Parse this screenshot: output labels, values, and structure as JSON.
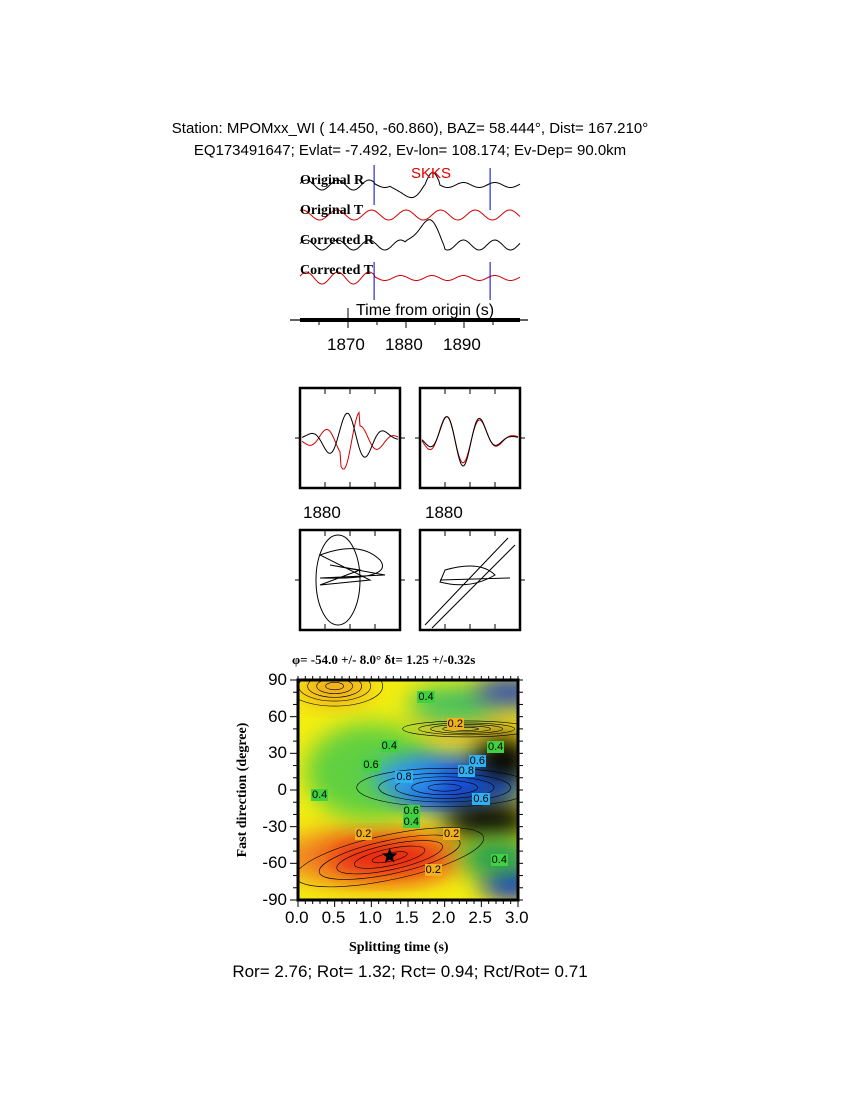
{
  "header": {
    "line1": "Station: MPOMxx_WI (  14.450,  -60.860), BAZ=   58.444°, Dist=  167.210°",
    "line2": "EQ173491647; Evlat=  -7.492, Ev-lon= 108.174; Ev-Dep= 90.0km"
  },
  "chart_data": [
    {
      "type": "line",
      "phase_label": "SKKS",
      "traces": [
        "Original R",
        "Original T",
        "Corrected R",
        "Corrected T"
      ],
      "xlabel": "Time from origin (s)",
      "x_ticks": [
        "1870",
        "1880",
        "1890"
      ],
      "window_markers_s": [
        1874.5,
        1894.5
      ],
      "colors": {
        "radial": "#000000",
        "transverse": "#d00000",
        "window": "#0000cc"
      }
    },
    {
      "type": "line",
      "panels": [
        "waveform comparison (original)",
        "waveform comparison (corrected)"
      ],
      "x_ticks": [
        "1880",
        "1880"
      ]
    },
    {
      "type": "scatter",
      "panels": [
        "particle motion (original)",
        "particle motion (corrected)"
      ]
    },
    {
      "type": "heatmap",
      "title": "φ= -54.0 +/- 8.0° δt= 1.25 +/-0.32s",
      "xlabel": "Splitting time (s)",
      "ylabel": "Fast direction (degree)",
      "xlim": [
        0,
        3
      ],
      "ylim": [
        -90,
        90
      ],
      "x_ticks": [
        "0.0",
        "0.5",
        "1.0",
        "1.5",
        "2.0",
        "2.5",
        "3.0"
      ],
      "y_ticks": [
        "90",
        "60",
        "30",
        "0",
        "-30",
        "-60",
        "-90"
      ],
      "best_fit": {
        "dt": 1.25,
        "phi": -54.0
      },
      "contour_labels": [
        {
          "text": "0.4",
          "dt": 1.75,
          "phi": 75
        },
        {
          "text": "0.2",
          "dt": 2.15,
          "phi": 53
        },
        {
          "text": "0.4",
          "dt": 1.25,
          "phi": 35
        },
        {
          "text": "0.4",
          "dt": 2.7,
          "phi": 34
        },
        {
          "text": "0.6",
          "dt": 2.45,
          "phi": 23
        },
        {
          "text": "0.6",
          "dt": 1.0,
          "phi": 20
        },
        {
          "text": "0.8",
          "dt": 2.3,
          "phi": 15
        },
        {
          "text": "0.8",
          "dt": 1.45,
          "phi": 10
        },
        {
          "text": "0.4",
          "dt": 0.3,
          "phi": -5
        },
        {
          "text": "0.6",
          "dt": 2.5,
          "phi": -8
        },
        {
          "text": "0.6",
          "dt": 1.55,
          "phi": -18
        },
        {
          "text": "0.4",
          "dt": 1.55,
          "phi": -27
        },
        {
          "text": "0.2",
          "dt": 0.9,
          "phi": -37
        },
        {
          "text": "0.2",
          "dt": 2.1,
          "phi": -37
        },
        {
          "text": "0.2",
          "dt": 1.85,
          "phi": -66
        },
        {
          "text": "0.4",
          "dt": 2.75,
          "phi": -58
        }
      ]
    }
  ],
  "footer": {
    "ratios": "Ror= 2.76; Rot= 1.32; Rct= 0.94; Rct/Rot= 0.71"
  }
}
